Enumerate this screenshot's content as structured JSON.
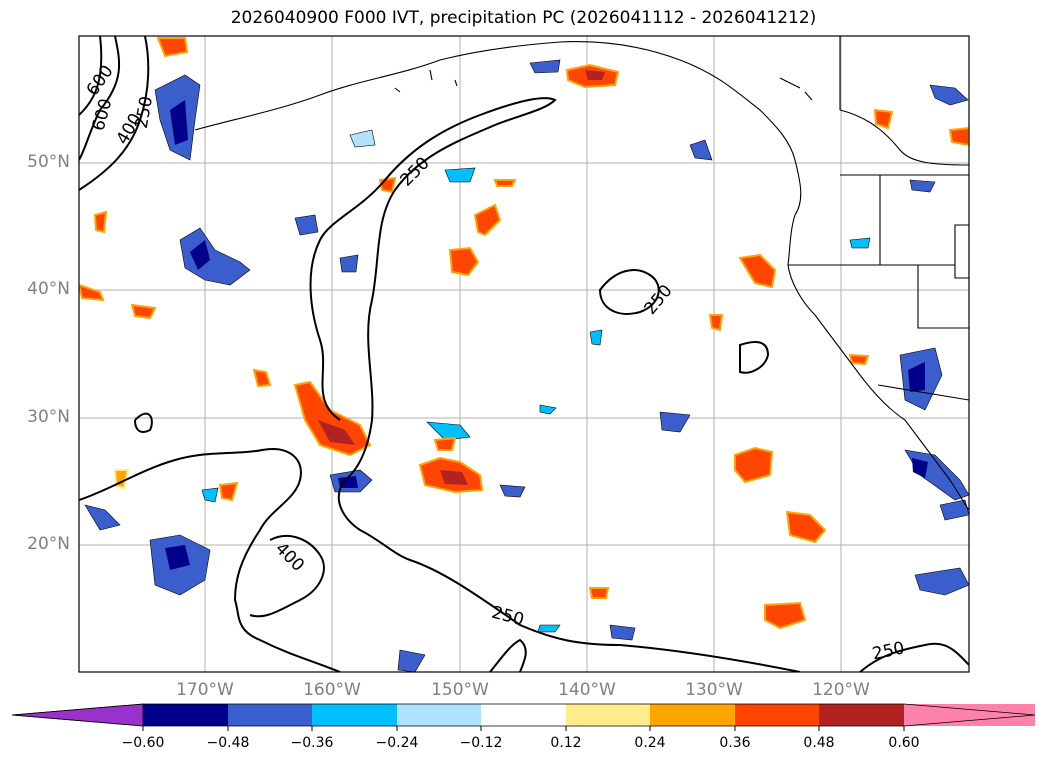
{
  "title": "2026040900 F000 IVT, precipitation PC (2026041112 - 2026041212)",
  "lat_labels": [
    "50°N",
    "40°N",
    "30°N",
    "20°N"
  ],
  "lon_labels": [
    "170°W",
    "160°W",
    "150°W",
    "140°W",
    "130°W",
    "120°W"
  ],
  "contour_labels": [
    "600",
    "600",
    "400",
    "250",
    "250",
    "250",
    "400",
    "250",
    "250"
  ],
  "colorbar": {
    "ticks": [
      "−0.60",
      "−0.48",
      "−0.36",
      "−0.24",
      "−0.12",
      "0.12",
      "0.24",
      "0.36",
      "0.48",
      "0.60"
    ],
    "colors": [
      "#9932cc",
      "#00008b",
      "#3a5fcd",
      "#00bfff",
      "#b0e2ff",
      "#ffffff",
      "#ffec8b",
      "#ffa500",
      "#ff4500",
      "#b22222",
      "#ff82ab"
    ]
  }
}
